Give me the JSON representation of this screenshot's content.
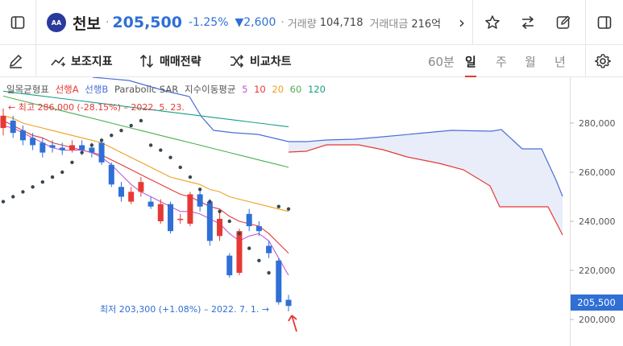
{
  "header": {
    "stock_name": "천보",
    "logo_text": "AA",
    "separator": "·",
    "price": "205,500",
    "change_pct": "-1.25%",
    "change_abs": "▼2,600",
    "volume_label": "거래량",
    "volume_value": "104,718",
    "amount_label": "거래대금",
    "amount_value": "216억",
    "more_glyph": "›"
  },
  "toolbar": {
    "indicators_label": "보조지표",
    "strategy_label": "매매전략",
    "compare_label": "비교차트",
    "periods": [
      "60분",
      "일",
      "주",
      "월",
      "년"
    ],
    "active_period": "일"
  },
  "legend": {
    "ichimoku": "일목균형표",
    "span_a": "선행A",
    "span_b": "선행B",
    "sar": "Parabolic SAR",
    "ma": "지수이동평균",
    "ma_periods": [
      "5",
      "10",
      "20",
      "60",
      "120"
    ]
  },
  "colors": {
    "up": "#e53935",
    "down": "#2f6fd6",
    "span_a": "#e53935",
    "span_b": "#4a6fd6",
    "cloud": "#e8edf9",
    "ma5": "#c05ad6",
    "ma10": "#e53935",
    "ma20": "#f0a020",
    "ma60": "#4caf50",
    "ma120": "#16a085"
  },
  "annotations": {
    "high": "← 최고 286,000 (-28.15%) – 2022. 5. 23.",
    "low": "최저 203,300 (+1.08%) – 2022. 7. 1. →",
    "current_price_tag": "205,500"
  },
  "chart_data": {
    "type": "candlestick",
    "y_ticks": [
      "280,000",
      "260,000",
      "240,000",
      "220,000",
      "200,000"
    ],
    "y_tick_values": [
      280000,
      260000,
      240000,
      220000,
      200000
    ],
    "ylim": [
      196000,
      297000
    ],
    "candles": [
      {
        "o": 278000,
        "c": 283000,
        "h": 286000,
        "l": 275000
      },
      {
        "o": 281000,
        "c": 276000,
        "h": 283000,
        "l": 274000
      },
      {
        "o": 277000,
        "c": 273000,
        "h": 279000,
        "l": 271000
      },
      {
        "o": 274000,
        "c": 271000,
        "h": 276000,
        "l": 269000
      },
      {
        "o": 272000,
        "c": 268000,
        "h": 274000,
        "l": 266000
      },
      {
        "o": 271000,
        "c": 270000,
        "h": 273000,
        "l": 268000
      },
      {
        "o": 270000,
        "c": 269000,
        "h": 272000,
        "l": 267000
      },
      {
        "o": 269000,
        "c": 271000,
        "h": 273000,
        "l": 268000
      },
      {
        "o": 271000,
        "c": 269000,
        "h": 273000,
        "l": 267000
      },
      {
        "o": 270000,
        "c": 268000,
        "h": 272000,
        "l": 266000
      },
      {
        "o": 272000,
        "c": 264000,
        "h": 273000,
        "l": 263000
      },
      {
        "o": 263000,
        "c": 255000,
        "h": 264000,
        "l": 254000
      },
      {
        "o": 254000,
        "c": 250000,
        "h": 256000,
        "l": 248000
      },
      {
        "o": 248000,
        "c": 252000,
        "h": 254000,
        "l": 247000
      },
      {
        "o": 252000,
        "c": 256000,
        "h": 258000,
        "l": 250000
      },
      {
        "o": 248000,
        "c": 246000,
        "h": 250000,
        "l": 245000
      },
      {
        "o": 240000,
        "c": 247000,
        "h": 249000,
        "l": 239000
      },
      {
        "o": 247000,
        "c": 236000,
        "h": 248000,
        "l": 235000
      },
      {
        "o": 241000,
        "c": 241000,
        "h": 243000,
        "l": 239000
      },
      {
        "o": 239000,
        "c": 251000,
        "h": 252000,
        "l": 238000
      },
      {
        "o": 251000,
        "c": 246000,
        "h": 253000,
        "l": 244000
      },
      {
        "o": 248000,
        "c": 232000,
        "h": 249000,
        "l": 230000
      },
      {
        "o": 234000,
        "c": 241000,
        "h": 244000,
        "l": 232000
      },
      {
        "o": 226000,
        "c": 218000,
        "h": 227000,
        "l": 217000
      },
      {
        "o": 219000,
        "c": 236000,
        "h": 237000,
        "l": 218000
      },
      {
        "o": 243000,
        "c": 238000,
        "h": 245000,
        "l": 236000
      },
      {
        "o": 238000,
        "c": 236000,
        "h": 240000,
        "l": 234000
      },
      {
        "o": 230000,
        "c": 227000,
        "h": 232000,
        "l": 225000
      },
      {
        "o": 224000,
        "c": 207000,
        "h": 225000,
        "l": 206000
      },
      {
        "o": 208000,
        "c": 205500,
        "h": 210000,
        "l": 203300
      }
    ],
    "sar": [
      248000,
      250000,
      252000,
      254000,
      256000,
      258000,
      260000,
      264000,
      268000,
      271000,
      273000,
      275000,
      277000,
      279000,
      281000,
      271000,
      269000,
      266000,
      262000,
      258000,
      253000,
      248000,
      244000,
      240000,
      235000,
      229000,
      224000,
      219000,
      246000,
      245000
    ],
    "ma5": [
      279000,
      278000,
      276000,
      274000,
      272000,
      270000,
      269000,
      269000,
      269000,
      268000,
      266000,
      263000,
      259000,
      255000,
      252000,
      250000,
      248000,
      246000,
      244000,
      244000,
      243000,
      241000,
      239000,
      235000,
      232000,
      234000,
      235000,
      232000,
      225000,
      218000
    ],
    "ma10": [
      281000,
      279000,
      277000,
      275000,
      274000,
      272000,
      271000,
      270000,
      269000,
      268000,
      267000,
      265000,
      263000,
      261000,
      259000,
      257000,
      255000,
      253000,
      251000,
      250000,
      248000,
      246000,
      245000,
      242000,
      240000,
      239000,
      238000,
      235000,
      231000,
      227000
    ],
    "ma20": [
      283000,
      282000,
      280000,
      279000,
      278000,
      277000,
      276000,
      275000,
      274000,
      273000,
      272000,
      270000,
      268000,
      266000,
      264000,
      262000,
      260000,
      258000,
      257000,
      256000,
      255000,
      253000,
      252000,
      250000,
      249000,
      248000,
      247000,
      246000,
      245000,
      244000
    ],
    "ma60": [
      291000,
      290000,
      289000,
      288000,
      287000,
      286000,
      285000,
      284000,
      283000,
      282000,
      281000,
      280000,
      279000,
      278000,
      277000,
      276000,
      275000,
      274000,
      273000,
      272000,
      271000,
      270000,
      269000,
      268000,
      267000,
      266000,
      265000,
      264000,
      263000,
      262000
    ],
    "ma120": [
      293000,
      292500,
      292000,
      291500,
      291000,
      290500,
      290000,
      289500,
      289000,
      288500,
      288000,
      287500,
      287000,
      286500,
      286000,
      285500,
      285000,
      284500,
      284000,
      283500,
      283000,
      282500,
      282000,
      281500,
      281000,
      280500,
      280000,
      279500,
      279000,
      278500
    ]
  }
}
